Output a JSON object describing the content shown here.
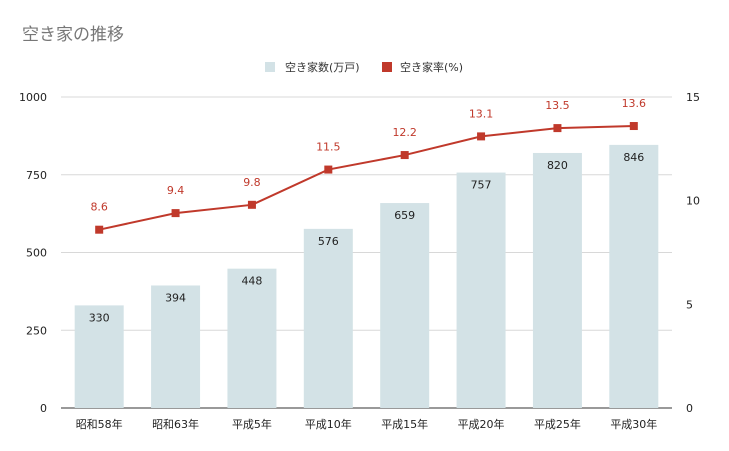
{
  "chart_data": {
    "type": "bar",
    "title": "空き家の推移",
    "categories": [
      "昭和58年",
      "昭和63年",
      "平成5年",
      "平成10年",
      "平成15年",
      "平成20年",
      "平成25年",
      "平成30年"
    ],
    "series": [
      {
        "name": "空き家数(万戸)",
        "type": "bar",
        "axis": "left",
        "values": [
          330,
          394,
          448,
          576,
          659,
          757,
          820,
          846
        ]
      },
      {
        "name": "空き家率(%)",
        "type": "line",
        "axis": "right",
        "values": [
          8.6,
          9.4,
          9.8,
          11.5,
          12.2,
          13.1,
          13.5,
          13.6
        ]
      }
    ],
    "y_left": {
      "range": [
        0,
        1000
      ],
      "ticks": [
        0,
        250,
        500,
        750,
        1000
      ]
    },
    "y_right": {
      "range": [
        0,
        15
      ],
      "ticks": [
        0,
        5,
        10,
        15
      ]
    },
    "grid": true,
    "legend": "top-center",
    "colors": {
      "bar": "#d3e2e6",
      "line": "#c0392b",
      "grid": "#d8d8d8",
      "axis": "#333333"
    }
  }
}
